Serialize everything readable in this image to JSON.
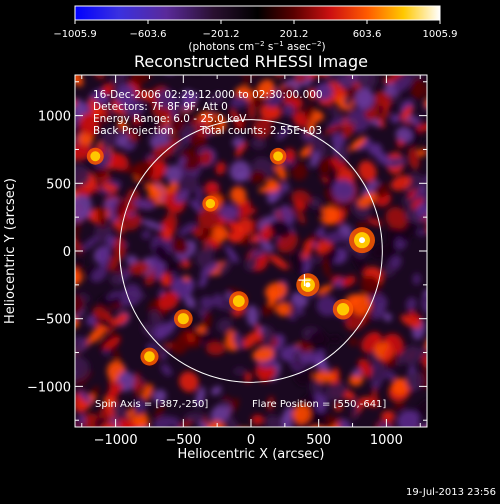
{
  "chart_data": {
    "type": "heatmap",
    "title": "Reconstructed RHESSI Image",
    "xlabel": "Heliocentric X (arcsec)",
    "ylabel": "Heliocentric Y (arcsec)",
    "xlim": [
      -1300,
      1300
    ],
    "ylim": [
      -1300,
      1300
    ],
    "xticks": [
      -1000,
      -500,
      0,
      500,
      1000
    ],
    "yticks": [
      -1000,
      -500,
      0,
      500,
      1000
    ],
    "xtick_labels": [
      "−1000",
      "−500",
      "0",
      "500",
      "1000"
    ],
    "ytick_labels": [
      "−1000",
      "−500",
      "0",
      "500",
      "1000"
    ],
    "colorbar": {
      "range": [
        -1005.9,
        1005.9
      ],
      "ticks": [
        -1005.9,
        -603.6,
        -201.2,
        201.2,
        603.6,
        1005.9
      ],
      "tick_labels": [
        "−1005.9",
        "−603.6",
        "−201.2",
        "201.2",
        "603.6",
        "1005.9"
      ],
      "unit_prefix": "(photons cm",
      "unit_exp1": "−2",
      "unit_mid1": " s",
      "unit_exp2": "−1",
      "unit_mid2": " asec",
      "unit_exp3": "−2",
      "unit_suffix": ")"
    },
    "solar_limb_radius_arcsec": 970,
    "flare_marker": [
      395,
      -215
    ],
    "bright_sources": [
      {
        "x": 820,
        "y": 80,
        "intensity": 1005.9
      },
      {
        "x": 420,
        "y": -250,
        "intensity": 850
      },
      {
        "x": 680,
        "y": -430,
        "intensity": 700
      },
      {
        "x": -90,
        "y": -370,
        "intensity": 650
      },
      {
        "x": -500,
        "y": -500,
        "intensity": 600
      },
      {
        "x": -750,
        "y": -780,
        "intensity": 560
      },
      {
        "x": -1150,
        "y": 700,
        "intensity": 500
      },
      {
        "x": 200,
        "y": 700,
        "intensity": 480
      },
      {
        "x": -300,
        "y": 350,
        "intensity": 450
      }
    ],
    "info_lines": [
      "16-Dec-2006 02:29:12.000 to 02:30:00.000",
      "Detectors: 7F 8F 9F, Att 0",
      "Energy Range: 6.0 - 25.0 keV"
    ],
    "method": "Back Projection",
    "total_counts": "Total counts: 2.55E+03",
    "spin_axis": "Spin Axis = [387,-250]",
    "flare_position": "Flare Position = [550,-641]"
  },
  "footer_timestamp": "19-Jul-2013 23:56",
  "colors": {
    "background": "#000000",
    "limb": "#ffffff",
    "colormap": [
      "#0000ff",
      "#5a2ad8",
      "#5a2a8a",
      "#3a1a4a",
      "#000000",
      "#5a0000",
      "#cc1010",
      "#ff5a00",
      "#ffc800",
      "#ffffff"
    ]
  }
}
